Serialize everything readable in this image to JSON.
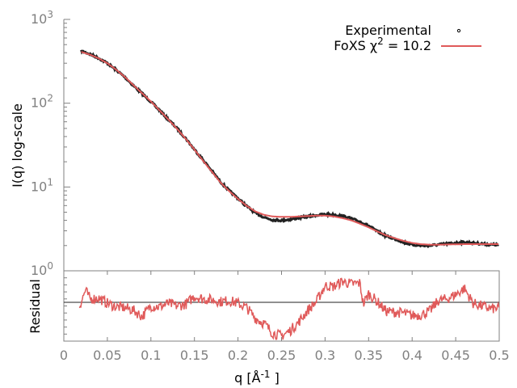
{
  "chart_data": [
    {
      "type": "line",
      "panel": "main",
      "ylabel": "I(q) log-scale",
      "yscale": "log",
      "ylim": [
        1,
        1000
      ],
      "xlim": [
        0,
        0.5
      ],
      "y_tick_labels": [
        {
          "base": "10",
          "exp": "3"
        },
        {
          "base": "10",
          "exp": "2"
        },
        {
          "base": "10",
          "exp": "1"
        },
        {
          "base": "10",
          "exp": "0"
        }
      ],
      "grid": false,
      "legend_position": "top-right",
      "series": [
        {
          "name": "Experimental",
          "style": "points",
          "color": "#000000",
          "x": [
            0.02,
            0.03,
            0.04,
            0.05,
            0.06,
            0.07,
            0.08,
            0.09,
            0.1,
            0.11,
            0.12,
            0.13,
            0.14,
            0.15,
            0.16,
            0.17,
            0.18,
            0.19,
            0.2,
            0.21,
            0.22,
            0.23,
            0.24,
            0.25,
            0.26,
            0.27,
            0.28,
            0.29,
            0.3,
            0.31,
            0.32,
            0.33,
            0.34,
            0.35,
            0.36,
            0.37,
            0.38,
            0.39,
            0.4,
            0.41,
            0.42,
            0.43,
            0.44,
            0.45,
            0.46,
            0.47,
            0.48,
            0.49,
            0.5
          ],
          "y": [
            420,
            385,
            345,
            300,
            250,
            205,
            162,
            130,
            104,
            82,
            64,
            50,
            38,
            28,
            21,
            15.5,
            11.5,
            9,
            7.3,
            5.9,
            4.9,
            4.35,
            4.05,
            4.0,
            4.1,
            4.3,
            4.45,
            4.6,
            4.7,
            4.65,
            4.5,
            4.2,
            3.85,
            3.45,
            2.95,
            2.6,
            2.4,
            2.2,
            2.05,
            2.0,
            2.0,
            2.05,
            2.1,
            2.15,
            2.2,
            2.15,
            2.1,
            2.05,
            2.05
          ]
        },
        {
          "name": "FoXS χ² = 10.2",
          "style": "line",
          "color": "#e05a5a",
          "x": [
            0.02,
            0.03,
            0.04,
            0.05,
            0.06,
            0.07,
            0.08,
            0.09,
            0.1,
            0.11,
            0.12,
            0.13,
            0.14,
            0.15,
            0.16,
            0.17,
            0.18,
            0.19,
            0.2,
            0.21,
            0.22,
            0.23,
            0.24,
            0.25,
            0.26,
            0.27,
            0.28,
            0.29,
            0.3,
            0.31,
            0.32,
            0.33,
            0.34,
            0.35,
            0.36,
            0.37,
            0.38,
            0.39,
            0.4,
            0.41,
            0.42,
            0.43,
            0.44,
            0.45,
            0.46,
            0.47,
            0.48,
            0.49,
            0.5
          ],
          "y": [
            410,
            380,
            343,
            300,
            252,
            206,
            164,
            131,
            105,
            82,
            64,
            49.5,
            37.5,
            28,
            20.5,
            15.2,
            11.3,
            8.9,
            7.2,
            5.95,
            5.1,
            4.65,
            4.45,
            4.4,
            4.4,
            4.45,
            4.5,
            4.55,
            4.55,
            4.45,
            4.25,
            4.0,
            3.65,
            3.3,
            2.95,
            2.65,
            2.45,
            2.28,
            2.15,
            2.08,
            2.05,
            2.05,
            2.06,
            2.07,
            2.08,
            2.08,
            2.08,
            2.08,
            2.08
          ]
        }
      ],
      "legend": {
        "experimental_label": "Experimental",
        "fit_label_prefix": "FoXS χ",
        "fit_label_sup": "2",
        "fit_label_suffix": " = 10.2"
      }
    },
    {
      "type": "line",
      "panel": "residual",
      "ylabel": "Residual",
      "xlabel_prefix": "q [Å",
      "xlabel_sup": "-1",
      "xlabel_suffix": " ]",
      "xlim": [
        0,
        0.5
      ],
      "ylim": [
        -4.4,
        3.6
      ],
      "x_ticks": [
        0,
        0.05,
        0.1,
        0.15,
        0.2,
        0.25,
        0.3,
        0.35,
        0.4,
        0.45,
        0.5
      ],
      "x_tick_labels": [
        "0",
        "0.05",
        "0.1",
        "0.15",
        "0.2",
        "0.25",
        "0.3",
        "0.35",
        "0.4",
        "0.45",
        "0.5"
      ],
      "reference_line": 0,
      "series": [
        {
          "color": "#e05a5a",
          "x": [
            0.018,
            0.025,
            0.03,
            0.04,
            0.05,
            0.06,
            0.07,
            0.08,
            0.09,
            0.1,
            0.11,
            0.12,
            0.13,
            0.14,
            0.15,
            0.16,
            0.17,
            0.18,
            0.19,
            0.2,
            0.21,
            0.22,
            0.23,
            0.24,
            0.25,
            0.26,
            0.27,
            0.28,
            0.29,
            0.3,
            0.31,
            0.32,
            0.33,
            0.34,
            0.344,
            0.35,
            0.36,
            0.37,
            0.38,
            0.39,
            0.4,
            0.41,
            0.42,
            0.43,
            0.44,
            0.45,
            0.46,
            0.47,
            0.48,
            0.49,
            0.5
          ],
          "y": [
            -0.4,
            1.4,
            0.4,
            0.5,
            -0.1,
            -0.5,
            -0.6,
            -0.9,
            -1.6,
            -0.4,
            -0.5,
            -0.1,
            -0.4,
            -0.2,
            0.7,
            0.4,
            0.3,
            0.1,
            0.2,
            -0.1,
            -0.6,
            -1.8,
            -2.4,
            -3.5,
            -3.8,
            -3.2,
            -2.2,
            -0.9,
            0.1,
            1.9,
            1.8,
            2.4,
            2.1,
            2.2,
            -0.2,
            1.0,
            0.1,
            -1.0,
            -1.1,
            -1.2,
            -1.5,
            -1.4,
            -1.0,
            0.2,
            0.4,
            0.9,
            1.6,
            -0.1,
            -0.4,
            -0.7,
            -0.7
          ]
        }
      ]
    }
  ]
}
